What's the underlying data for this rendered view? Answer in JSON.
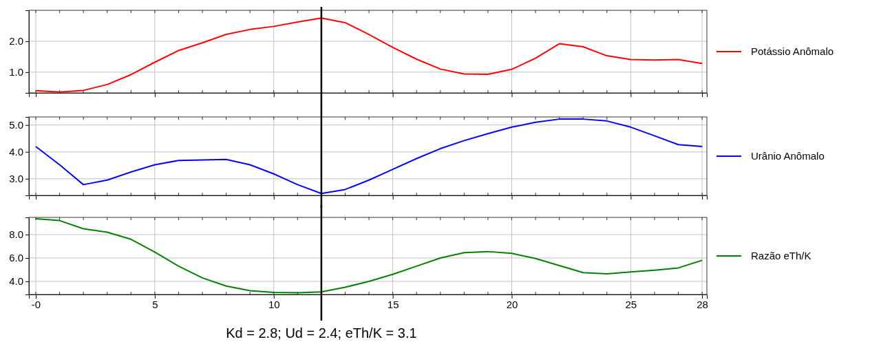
{
  "chart_data": [
    {
      "type": "line",
      "x": [
        0,
        1,
        2,
        3,
        4,
        5,
        6,
        7,
        8,
        9,
        10,
        11,
        12,
        13,
        14,
        15,
        16,
        17,
        18,
        19,
        20,
        21,
        22,
        23,
        24,
        25,
        26,
        27,
        28
      ],
      "series": [
        {
          "name": "Potássio Anômalo",
          "color": "#ff0000",
          "values": [
            0.4,
            0.36,
            0.41,
            0.6,
            0.92,
            1.32,
            1.7,
            1.95,
            2.22,
            2.38,
            2.48,
            2.62,
            2.75,
            2.6,
            2.22,
            1.8,
            1.42,
            1.1,
            0.94,
            0.93,
            1.09,
            1.45,
            1.92,
            1.82,
            1.53,
            1.41,
            1.39,
            1.41,
            1.28
          ]
        }
      ],
      "xlim": [
        -0.29,
        28.2
      ],
      "xticks": [
        0,
        5,
        10,
        15,
        20,
        25,
        28
      ],
      "ylim": [
        0.33,
        3.0
      ],
      "yticks": [
        {
          "value": 1,
          "label": "1.0"
        },
        {
          "value": 2,
          "label": "2.0"
        }
      ],
      "grid": true,
      "legend": "right",
      "tick_labels": "y",
      "marker": "none",
      "line_style": "solid",
      "ref_lines": [
        {
          "axis": "x",
          "value": 12,
          "color": "#000000"
        }
      ]
    },
    {
      "type": "line",
      "x": [
        0,
        1,
        2,
        3,
        4,
        5,
        6,
        7,
        8,
        9,
        10,
        11,
        12,
        13,
        14,
        15,
        16,
        17,
        18,
        19,
        20,
        21,
        22,
        23,
        24,
        25,
        26,
        27,
        28
      ],
      "series": [
        {
          "name": "Urânio Anômalo",
          "color": "#0000ff",
          "values": [
            4.2,
            3.52,
            2.78,
            2.95,
            3.25,
            3.52,
            3.68,
            3.7,
            3.72,
            3.52,
            3.18,
            2.78,
            2.45,
            2.6,
            2.95,
            3.35,
            3.75,
            4.12,
            4.42,
            4.68,
            4.92,
            5.1,
            5.22,
            5.22,
            5.15,
            4.92,
            4.6,
            4.27,
            4.2
          ]
        }
      ],
      "xlim": [
        -0.29,
        28.2
      ],
      "xticks": [
        0,
        5,
        10,
        15,
        20,
        25,
        28
      ],
      "ylim": [
        2.38,
        5.3
      ],
      "yticks": [
        {
          "value": 3,
          "label": "3.0"
        },
        {
          "value": 4,
          "label": "4.0"
        },
        {
          "value": 5,
          "label": "5.0"
        }
      ],
      "grid": true,
      "legend": "right",
      "tick_labels": "y",
      "marker": "none",
      "line_style": "solid",
      "ref_lines": [
        {
          "axis": "x",
          "value": 12,
          "color": "#000000"
        }
      ]
    },
    {
      "type": "line",
      "x": [
        0,
        1,
        2,
        3,
        4,
        5,
        6,
        7,
        8,
        9,
        10,
        11,
        12,
        13,
        14,
        15,
        16,
        17,
        18,
        19,
        20,
        21,
        22,
        23,
        24,
        25,
        26,
        27,
        28
      ],
      "series": [
        {
          "name": "Razão eTh/K",
          "color": "#008000",
          "values": [
            9.35,
            9.2,
            8.5,
            8.2,
            7.6,
            6.5,
            5.3,
            4.3,
            3.6,
            3.2,
            3.05,
            3.02,
            3.1,
            3.5,
            4.0,
            4.6,
            5.3,
            6.0,
            6.45,
            6.55,
            6.4,
            5.95,
            5.35,
            4.75,
            4.65,
            4.8,
            4.95,
            5.15,
            5.8
          ]
        }
      ],
      "xlim": [
        -0.29,
        28.2
      ],
      "xticks": [
        {
          "value": 0,
          "label": "-0"
        },
        5,
        10,
        15,
        20,
        25,
        28
      ],
      "ylim": [
        2.88,
        9.47
      ],
      "yticks": [
        {
          "value": 4,
          "label": "4.0"
        },
        {
          "value": 6,
          "label": "6.0"
        },
        {
          "value": 8,
          "label": "8.0"
        }
      ],
      "grid": true,
      "legend": "right",
      "marker": "none",
      "line_style": "solid",
      "ref_lines": [
        {
          "axis": "x",
          "value": 12,
          "color": "#000000"
        }
      ],
      "annotations": [
        "Kd = 2.8; Ud = 2.4; eTh/K = 3.1"
      ]
    }
  ]
}
